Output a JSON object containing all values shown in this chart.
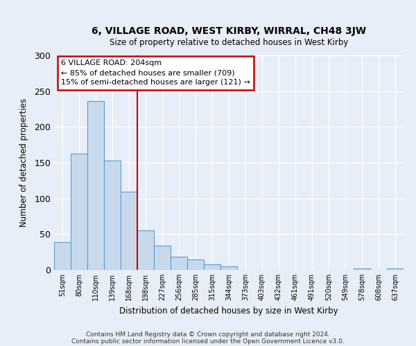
{
  "title": "6, VILLAGE ROAD, WEST KIRBY, WIRRAL, CH48 3JW",
  "subtitle": "Size of property relative to detached houses in West Kirby",
  "xlabel": "Distribution of detached houses by size in West Kirby",
  "ylabel": "Number of detached properties",
  "bin_labels": [
    "51sqm",
    "80sqm",
    "110sqm",
    "139sqm",
    "168sqm",
    "198sqm",
    "227sqm",
    "256sqm",
    "285sqm",
    "315sqm",
    "344sqm",
    "373sqm",
    "403sqm",
    "432sqm",
    "461sqm",
    "491sqm",
    "520sqm",
    "549sqm",
    "578sqm",
    "608sqm",
    "637sqm"
  ],
  "bar_values": [
    39,
    163,
    236,
    153,
    109,
    55,
    34,
    18,
    15,
    8,
    5,
    0,
    0,
    0,
    0,
    0,
    0,
    0,
    2,
    0,
    2
  ],
  "bar_color": "#c9d9ec",
  "bar_edge_color": "#5b9bd5",
  "vline_index": 5,
  "vline_color": "#cc0000",
  "annotation_title": "6 VILLAGE ROAD: 204sqm",
  "annotation_line1": "← 85% of detached houses are smaller (709)",
  "annotation_line2": "15% of semi-detached houses are larger (121) →",
  "annotation_box_color": "#cc0000",
  "ylim": [
    0,
    300
  ],
  "yticks": [
    0,
    50,
    100,
    150,
    200,
    250,
    300
  ],
  "footer1": "Contains HM Land Registry data © Crown copyright and database right 2024.",
  "footer2": "Contains public sector information licensed under the Open Government Licence v3.0.",
  "background_color": "#e8eef7",
  "plot_bg_color": "#e8eef7",
  "grid_color": "#ffffff"
}
